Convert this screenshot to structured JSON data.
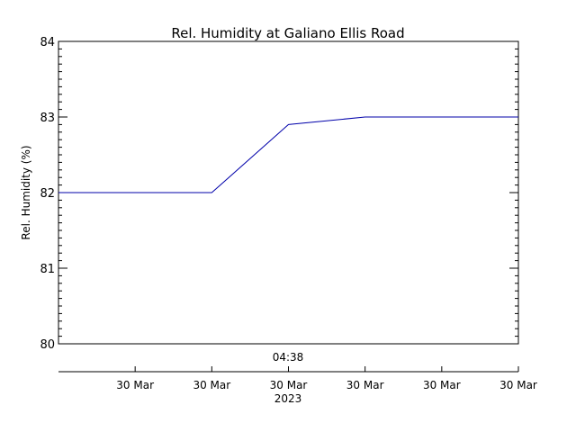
{
  "chart_data": {
    "type": "line",
    "title": "Rel. Humidity at Galiano Ellis Road",
    "ylabel": "Rel. Humidity (%)",
    "ylim": [
      80,
      84
    ],
    "yticks": [
      80,
      81,
      82,
      83,
      84
    ],
    "ytick_labels": [
      "80",
      "81",
      "82",
      "83",
      "84"
    ],
    "time_marker_label": "04:38",
    "x_year_label": "2023",
    "xticks": [
      {
        "label": "30 Mar",
        "pos": 1
      },
      {
        "label": "30 Mar",
        "pos": 2
      },
      {
        "label": "30 Mar",
        "pos": 3
      },
      {
        "label": "30 Mar",
        "pos": 4
      },
      {
        "label": "30 Mar",
        "pos": 5
      },
      {
        "label": "30 Mar",
        "pos": 6
      }
    ],
    "xlim": [
      0,
      6
    ],
    "series": [
      {
        "color": "#0000aa",
        "x": [
          0,
          2,
          3,
          4,
          6
        ],
        "y": [
          82,
          82,
          82.9,
          83,
          83
        ]
      }
    ]
  }
}
